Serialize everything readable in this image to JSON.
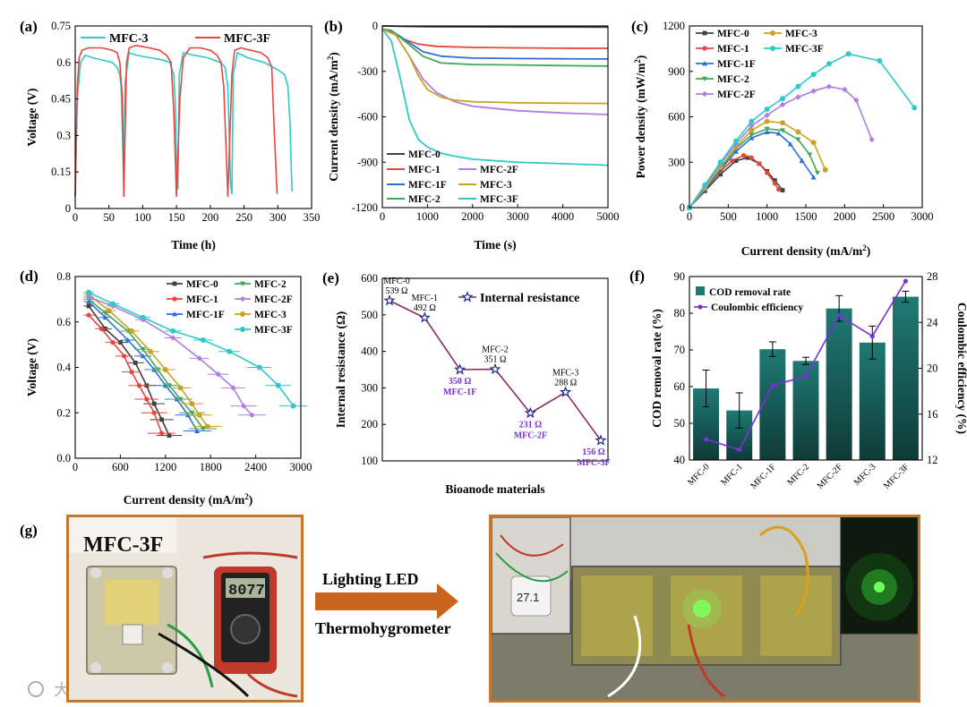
{
  "colors": {
    "mfc0": "#404040",
    "mfc1": "#e8453c",
    "mfc1f": "#2f6fd6",
    "mfc2": "#3fa85a",
    "mfc2f": "#b07ee0",
    "mfc3": "#c9a227",
    "mfc3f": "#2ec9c9",
    "bar": "#1f7a74",
    "ce_line": "#7b2fd6",
    "ir_line": "#8a2a63",
    "ir_marker": "#1f2a8a",
    "ir_label_purple": "#7b2fd6",
    "arrow": "#c9641e",
    "photo_border": "#c7762d"
  },
  "panels": {
    "a": "(a)",
    "b": "(b)",
    "c": "(c)",
    "d": "(d)",
    "e": "(e)",
    "f": "(f)",
    "g": "(g)"
  },
  "photo": {
    "label": "MFC-3F",
    "meter_display": "8077",
    "arrow_text_1": "Lighting LED",
    "arrow_text_2": "Thermohygrometer",
    "thermo_display": "27.1",
    "watermark": "大数跨境"
  },
  "chart_data": [
    {
      "id": "a",
      "type": "line",
      "xlabel": "Time (h)",
      "ylabel": "Voltage (V)",
      "xlim": [
        0,
        350
      ],
      "ylim": [
        0,
        0.75
      ],
      "xticks": [
        "0",
        "50",
        "100",
        "150",
        "200",
        "250",
        "300",
        "350"
      ],
      "yticks": [
        "0",
        "0.15",
        "0.3",
        "0.45",
        "0.6",
        "0.75"
      ],
      "legend": [
        "MFC-3",
        "MFC-3F"
      ],
      "series": [
        {
          "name": "MFC-3",
          "color_key": "mfc3f",
          "x": [
            0,
            3,
            8,
            15,
            25,
            40,
            55,
            62,
            66,
            68,
            70,
            72,
            74,
            80,
            90,
            110,
            130,
            140,
            146,
            148,
            150,
            152,
            154,
            160,
            175,
            195,
            215,
            222,
            226,
            228,
            230,
            232,
            234,
            240,
            255,
            280,
            300,
            310,
            315,
            318,
            321
          ],
          "y": [
            0.05,
            0.45,
            0.6,
            0.63,
            0.62,
            0.61,
            0.6,
            0.58,
            0.55,
            0.5,
            0.3,
            0.1,
            0.52,
            0.64,
            0.63,
            0.62,
            0.61,
            0.6,
            0.55,
            0.45,
            0.2,
            0.08,
            0.55,
            0.64,
            0.63,
            0.62,
            0.6,
            0.58,
            0.5,
            0.3,
            0.1,
            0.06,
            0.55,
            0.64,
            0.62,
            0.6,
            0.57,
            0.55,
            0.5,
            0.35,
            0.07
          ]
        },
        {
          "name": "MFC-3F",
          "color_key": "mfc1",
          "x": [
            0,
            3,
            6,
            10,
            20,
            40,
            55,
            62,
            66,
            70,
            72,
            76,
            80,
            90,
            110,
            125,
            135,
            142,
            146,
            150,
            155,
            160,
            170,
            185,
            200,
            210,
            216,
            220,
            224,
            226,
            232,
            236,
            245,
            260,
            275,
            285,
            291,
            295,
            299
          ],
          "y": [
            0.05,
            0.5,
            0.62,
            0.65,
            0.66,
            0.66,
            0.65,
            0.64,
            0.6,
            0.45,
            0.05,
            0.6,
            0.66,
            0.67,
            0.66,
            0.65,
            0.63,
            0.6,
            0.4,
            0.05,
            0.45,
            0.62,
            0.66,
            0.66,
            0.65,
            0.63,
            0.6,
            0.5,
            0.2,
            0.05,
            0.55,
            0.65,
            0.66,
            0.65,
            0.64,
            0.62,
            0.58,
            0.3,
            0.06
          ]
        }
      ]
    },
    {
      "id": "b",
      "type": "line",
      "xlabel": "Time (s)",
      "ylabel": "Current density (mA/m",
      "ylabel_sup": "2",
      "ylabel_close": ")",
      "xlim": [
        0,
        5000
      ],
      "ylim": [
        -1200,
        0
      ],
      "xticks": [
        "0",
        "1000",
        "2000",
        "3000",
        "4000",
        "5000"
      ],
      "yticks": [
        "-1200",
        "-900",
        "-600",
        "-300",
        "0"
      ],
      "legend": [
        "MFC-0",
        "MFC-1",
        "MFC-1F",
        "MFC-2",
        "MFC-2F",
        "MFC-3",
        "MFC-3F"
      ],
      "series": [
        {
          "name": "MFC-0",
          "color_key": "mfc0",
          "x": [
            0,
            500,
            1000,
            2000,
            3000,
            4000,
            5000
          ],
          "y": [
            0,
            -3,
            -5,
            -6,
            -7,
            -7,
            -8
          ]
        },
        {
          "name": "MFC-1",
          "color_key": "mfc1",
          "x": [
            0,
            200,
            500,
            800,
            1200,
            2000,
            3000,
            4000,
            5000
          ],
          "y": [
            -20,
            -40,
            -90,
            -120,
            -135,
            -142,
            -145,
            -147,
            -148
          ]
        },
        {
          "name": "MFC-1F",
          "color_key": "mfc1f",
          "x": [
            0,
            200,
            500,
            900,
            1300,
            2000,
            3000,
            4000,
            5000
          ],
          "y": [
            -20,
            -30,
            -90,
            -170,
            -200,
            -212,
            -215,
            -217,
            -218
          ]
        },
        {
          "name": "MFC-2",
          "color_key": "mfc2",
          "x": [
            0,
            200,
            500,
            900,
            1300,
            2000,
            3000,
            4000,
            5000
          ],
          "y": [
            -20,
            -30,
            -100,
            -200,
            -245,
            -255,
            -258,
            -262,
            -265
          ]
        },
        {
          "name": "MFC-2F",
          "color_key": "mfc2f",
          "x": [
            0,
            300,
            600,
            900,
            1200,
            1600,
            2000,
            3000,
            4000,
            5000
          ],
          "y": [
            -20,
            -60,
            -200,
            -350,
            -440,
            -500,
            -530,
            -560,
            -575,
            -585
          ]
        },
        {
          "name": "MFC-3",
          "color_key": "mfc3",
          "x": [
            0,
            300,
            600,
            800,
            1000,
            1300,
            1600,
            2000,
            3000,
            4000,
            5000
          ],
          "y": [
            -20,
            -60,
            -200,
            -330,
            -420,
            -470,
            -490,
            -500,
            -508,
            -510,
            -512
          ]
        },
        {
          "name": "MFC-3F",
          "color_key": "mfc3f",
          "x": [
            0,
            200,
            400,
            600,
            800,
            1000,
            1300,
            1600,
            2000,
            3000,
            4000,
            5000
          ],
          "y": [
            -20,
            -100,
            -350,
            -620,
            -750,
            -800,
            -840,
            -860,
            -880,
            -900,
            -910,
            -920
          ]
        }
      ]
    },
    {
      "id": "c",
      "type": "line",
      "xlabel": "Current density (mA/m",
      "xlabel_sup": "2",
      "xlabel_close": ")",
      "ylabel": "Power density (mW/m",
      "ylabel_sup": "2",
      "ylabel_close": ")",
      "xlim": [
        0,
        3000
      ],
      "ylim": [
        0,
        1200
      ],
      "xticks": [
        "0",
        "500",
        "1000",
        "1500",
        "2000",
        "2500",
        "3000"
      ],
      "yticks": [
        "0",
        "300",
        "600",
        "900",
        "1200"
      ],
      "legend": [
        "MFC-0",
        "MFC-3",
        "MFC-1",
        "MFC-3F",
        "MFC-1F",
        "MFC-2",
        "MFC-2F"
      ],
      "series": [
        {
          "name": "MFC-0",
          "color_key": "mfc0",
          "x": [
            0,
            200,
            400,
            600,
            750,
            900,
            1000,
            1100,
            1200
          ],
          "y": [
            0,
            110,
            220,
            310,
            330,
            290,
            240,
            180,
            115
          ]
        },
        {
          "name": "MFC-1",
          "color_key": "mfc1",
          "x": [
            0,
            200,
            400,
            550,
            700,
            800,
            900,
            1000,
            1100,
            1150
          ],
          "y": [
            0,
            120,
            240,
            310,
            345,
            330,
            290,
            230,
            160,
            120
          ]
        },
        {
          "name": "MFC-1F",
          "color_key": "mfc1f",
          "x": [
            0,
            200,
            400,
            600,
            800,
            1000,
            1150,
            1300,
            1450,
            1600
          ],
          "y": [
            0,
            120,
            250,
            370,
            460,
            500,
            490,
            420,
            310,
            200
          ]
        },
        {
          "name": "MFC-2",
          "color_key": "mfc2",
          "x": [
            0,
            200,
            400,
            600,
            800,
            1000,
            1200,
            1400,
            1550,
            1650
          ],
          "y": [
            0,
            125,
            260,
            390,
            480,
            520,
            510,
            450,
            350,
            230
          ]
        },
        {
          "name": "MFC-3",
          "color_key": "mfc3",
          "x": [
            0,
            200,
            400,
            600,
            800,
            1000,
            1200,
            1400,
            1600,
            1750
          ],
          "y": [
            0,
            130,
            270,
            400,
            510,
            570,
            560,
            500,
            430,
            250
          ]
        },
        {
          "name": "MFC-2F",
          "color_key": "mfc2f",
          "x": [
            0,
            200,
            400,
            600,
            800,
            1000,
            1200,
            1400,
            1600,
            1800,
            2000,
            2150,
            2350
          ],
          "y": [
            0,
            140,
            290,
            420,
            540,
            610,
            680,
            730,
            770,
            800,
            780,
            710,
            450
          ]
        },
        {
          "name": "MFC-3F",
          "color_key": "mfc3f",
          "x": [
            0,
            200,
            400,
            600,
            800,
            1000,
            1200,
            1400,
            1600,
            1800,
            2050,
            2450,
            2900
          ],
          "y": [
            0,
            150,
            300,
            440,
            570,
            650,
            720,
            800,
            880,
            950,
            1015,
            970,
            660
          ]
        }
      ]
    },
    {
      "id": "d",
      "type": "line",
      "xlabel": "Current density (mA/m",
      "xlabel_sup": "2",
      "xlabel_close": ")",
      "ylabel": "Voltage (V)",
      "xlim": [
        0,
        3000
      ],
      "ylim": [
        0,
        0.8
      ],
      "xticks": [
        "0",
        "600",
        "1200",
        "1800",
        "2400",
        "3000"
      ],
      "yticks": [
        "0.0",
        "0.2",
        "0.4",
        "0.6",
        "0.8"
      ],
      "legend": [
        "MFC-0",
        "MFC-2",
        "MFC-1",
        "MFC-2F",
        "MFC-1F",
        "MFC-3",
        "MFC-3F"
      ],
      "series": [
        {
          "name": "MFC-0",
          "color_key": "mfc0",
          "x": [
            180,
            400,
            600,
            800,
            950,
            1050,
            1150,
            1250
          ],
          "y": [
            0.67,
            0.57,
            0.51,
            0.42,
            0.32,
            0.24,
            0.17,
            0.1
          ]
        },
        {
          "name": "MFC-1",
          "color_key": "mfc1",
          "x": [
            180,
            350,
            500,
            650,
            750,
            850,
            950,
            1050,
            1150
          ],
          "y": [
            0.63,
            0.57,
            0.51,
            0.45,
            0.38,
            0.32,
            0.26,
            0.2,
            0.11
          ]
        },
        {
          "name": "MFC-1F",
          "color_key": "mfc1f",
          "x": [
            180,
            400,
            700,
            900,
            1050,
            1200,
            1350,
            1500,
            1620
          ],
          "y": [
            0.69,
            0.62,
            0.52,
            0.45,
            0.39,
            0.32,
            0.26,
            0.19,
            0.12
          ]
        },
        {
          "name": "MFC-2",
          "color_key": "mfc2",
          "x": [
            180,
            400,
            700,
            900,
            1100,
            1250,
            1400,
            1550,
            1700
          ],
          "y": [
            0.7,
            0.64,
            0.56,
            0.48,
            0.39,
            0.32,
            0.26,
            0.2,
            0.13
          ]
        },
        {
          "name": "MFC-3",
          "color_key": "mfc3",
          "x": [
            180,
            450,
            750,
            1000,
            1200,
            1400,
            1550,
            1650,
            1760
          ],
          "y": [
            0.72,
            0.65,
            0.56,
            0.47,
            0.39,
            0.31,
            0.24,
            0.19,
            0.14
          ]
        },
        {
          "name": "MFC-2F",
          "color_key": "mfc2f",
          "x": [
            180,
            500,
            900,
            1300,
            1650,
            1900,
            2100,
            2240,
            2350
          ],
          "y": [
            0.71,
            0.67,
            0.61,
            0.53,
            0.44,
            0.37,
            0.31,
            0.23,
            0.19
          ]
        },
        {
          "name": "MFC-3F",
          "color_key": "mfc3f",
          "x": [
            180,
            500,
            900,
            1300,
            1700,
            2050,
            2450,
            2700,
            2900
          ],
          "y": [
            0.73,
            0.68,
            0.62,
            0.56,
            0.52,
            0.47,
            0.4,
            0.32,
            0.23
          ]
        }
      ]
    },
    {
      "id": "e",
      "type": "line",
      "xlabel": "Bioanode materials",
      "ylabel": "Internal resistance (Ω)",
      "ylim": [
        100,
        600
      ],
      "yticks": [
        "100",
        "200",
        "300",
        "400",
        "500",
        "600"
      ],
      "legend": [
        "Internal resistance"
      ],
      "categories": [
        "MFC-0",
        "MFC-1",
        "MFC-1F",
        "MFC-2",
        "MFC-2F",
        "MFC-3",
        "MFC-3F"
      ],
      "values": [
        539,
        492,
        350,
        351,
        231,
        288,
        156
      ],
      "point_labels": [
        "539 Ω",
        "492 Ω",
        "350 Ω",
        "351 Ω",
        "231 Ω",
        "288 Ω",
        "156 Ω"
      ]
    },
    {
      "id": "f",
      "type": "bar",
      "ylabel": "COD removal rate (%)",
      "y2label": "Coulombic efficiency (%)",
      "ylim": [
        40,
        90
      ],
      "y2lim": [
        12,
        28
      ],
      "yticks": [
        "40",
        "50",
        "60",
        "70",
        "80",
        "90"
      ],
      "y2ticks": [
        "12",
        "16",
        "20",
        "24",
        "28"
      ],
      "categories": [
        "MFC-0",
        "MFC-1",
        "MFC-1F",
        "MFC-2",
        "MFC-2F",
        "MFC-3",
        "MFC-3F"
      ],
      "legend": [
        "COD removal rate",
        "Coulombic efficiency"
      ],
      "cod": [
        59.5,
        53.5,
        70.2,
        67.0,
        81.3,
        72.0,
        84.5
      ],
      "cod_err": [
        5.0,
        4.8,
        2.0,
        1.0,
        3.5,
        4.5,
        1.5
      ],
      "ce": [
        13.8,
        12.9,
        18.5,
        19.3,
        24.6,
        22.8,
        27.6
      ]
    }
  ]
}
